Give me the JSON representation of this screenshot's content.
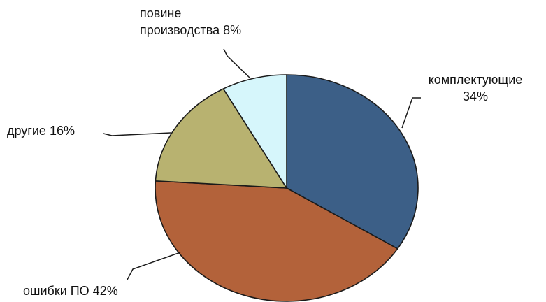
{
  "chart_data": {
    "type": "pie",
    "slices": [
      {
        "label_lines": [
          "комплектующие",
          "34%"
        ],
        "value": 34,
        "color": "#3c5f87"
      },
      {
        "label_lines": [
          "ошибки ПО 42%"
        ],
        "value": 42,
        "color": "#b3623a"
      },
      {
        "label_lines": [
          "другие 16%"
        ],
        "value": 16,
        "color": "#b8b270"
      },
      {
        "label_lines": [
          "повине",
          "производства 8%"
        ],
        "value": 8,
        "color": "#d6f6fb"
      }
    ],
    "start_angle": "12 o'clock",
    "direction": "clockwise",
    "legend": "none (leader-line labels)"
  }
}
